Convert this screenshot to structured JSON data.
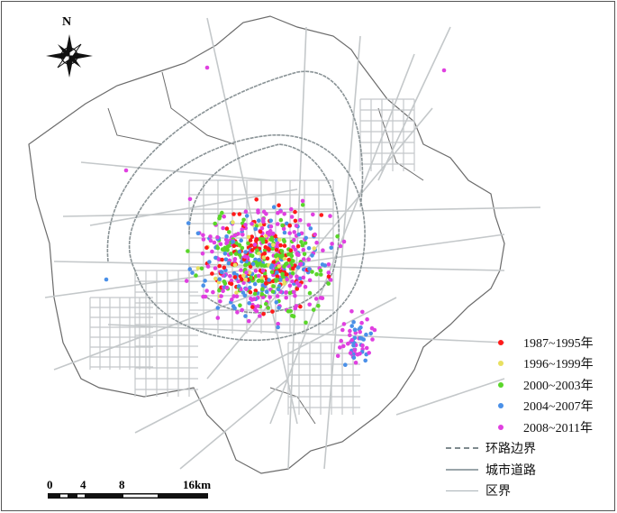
{
  "map": {
    "north_label": "N",
    "north_arrow_icon": "compass-rose-icon",
    "colors": {
      "road": "#c4c8ca",
      "ring": "#8a9396",
      "district": "#6b6b6b",
      "background": "#ffffff"
    },
    "legend": {
      "points": [
        {
          "label": "1987~1995年",
          "color": "#ff1a1a"
        },
        {
          "label": "1996~1999年",
          "color": "#e8e060"
        },
        {
          "label": "2000~2003年",
          "color": "#5ad62a"
        },
        {
          "label": "2004~2007年",
          "color": "#4a90e8"
        },
        {
          "label": "2008~2011年",
          "color": "#e040e0"
        }
      ],
      "lines": [
        {
          "label": "环路边界",
          "style": "dashed"
        },
        {
          "label": "城市道路",
          "style": "solid"
        },
        {
          "label": "区界",
          "style": "thin"
        }
      ]
    },
    "scale_bar": {
      "ticks": [
        "0",
        "4",
        "8",
        "16km"
      ]
    }
  }
}
